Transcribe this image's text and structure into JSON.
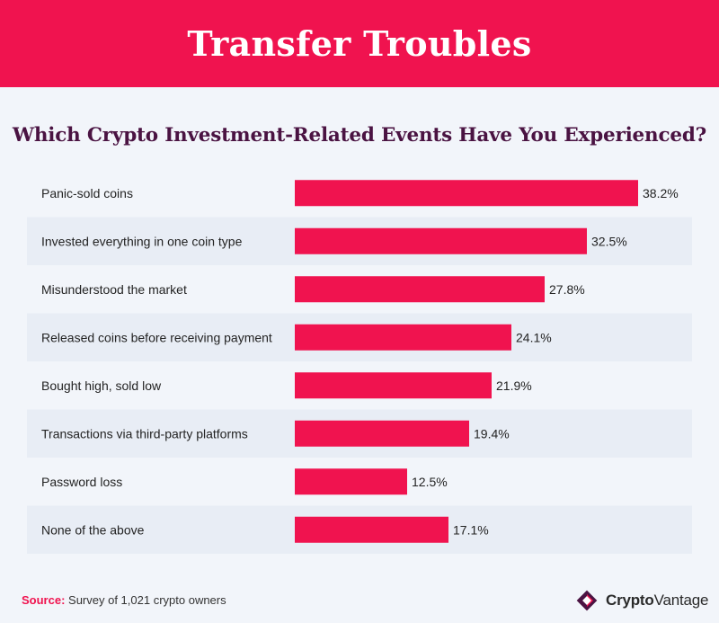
{
  "header": {
    "title": "Transfer Troubles"
  },
  "chart_data": {
    "type": "bar",
    "orientation": "horizontal",
    "title": "Which Crypto Investment-Related Events Have You Experienced?",
    "categories": [
      "Panic-sold coins",
      "Invested everything in one coin type",
      "Misunderstood the market",
      "Released coins before receiving payment",
      "Bought high, sold low",
      "Transactions via third-party platforms",
      "Password loss",
      "None of the above"
    ],
    "values": [
      38.2,
      32.5,
      27.8,
      24.1,
      21.9,
      19.4,
      12.5,
      17.1
    ],
    "value_labels": [
      "38.2%",
      "32.5%",
      "27.8%",
      "24.1%",
      "21.9%",
      "19.4%",
      "12.5%",
      "17.1%"
    ],
    "unit": "%",
    "bar_color": "#f0134f",
    "xlim": [
      0,
      38.2
    ]
  },
  "footer": {
    "source_label": "Source:",
    "source_text": "Survey of 1,021 crypto owners",
    "brand_part1": "Crypto",
    "brand_part2": "Vantage"
  },
  "colors": {
    "accent": "#f0134f",
    "title_text": "#4a1342",
    "background": "#f2f5fa",
    "stripe": "#e8edf5"
  }
}
